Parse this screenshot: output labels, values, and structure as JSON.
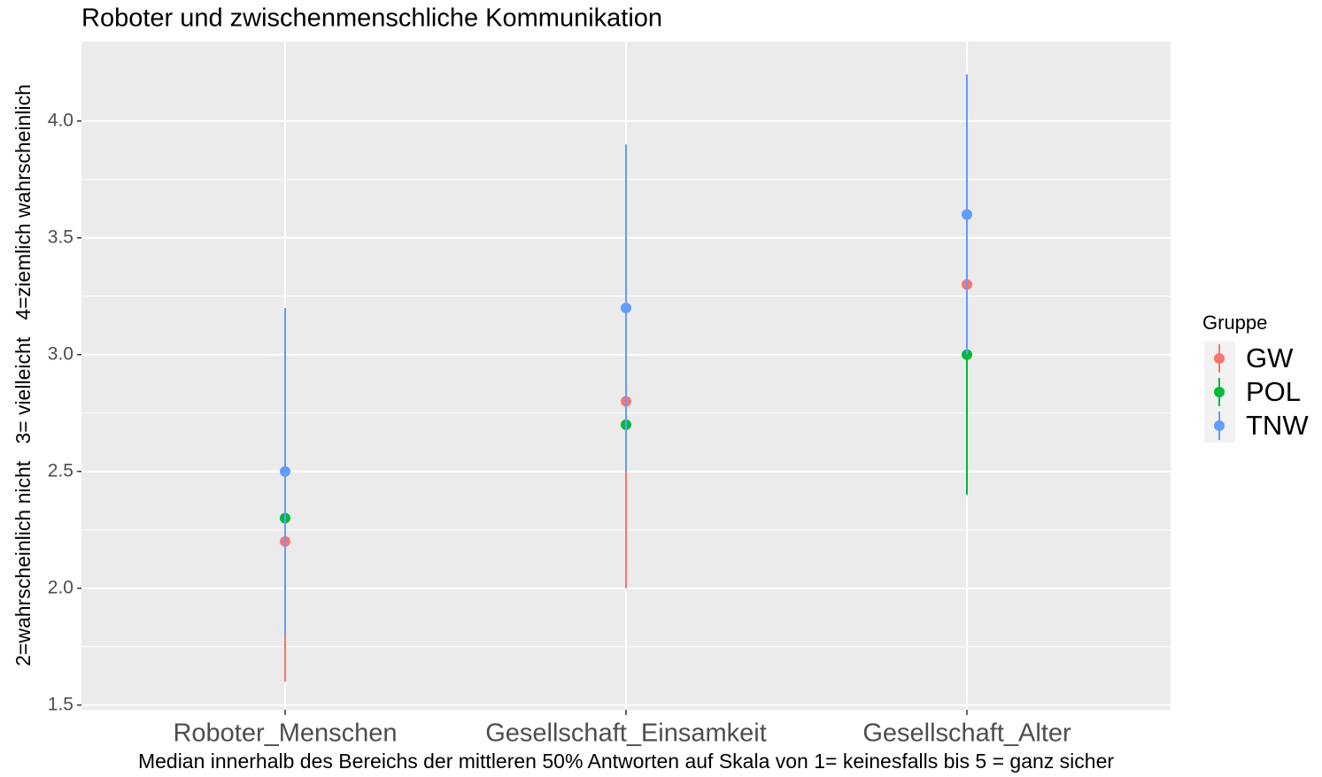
{
  "chart_data": {
    "type": "pointrange",
    "title": "Roboter und zwischenmenschliche Kommunikation",
    "x_label": "Median innerhalb des Bereichs der mittleren 50% Antworten auf Skala von 1= keinesfalls bis 5 = ganz sicher",
    "y_label": "2=wahrscheinlich nicht   3= vielleicht   4=ziemlich wahrscheinlich",
    "categories": [
      "Roboter_Menschen",
      "Gesellschaft_Einsamkeit",
      "Gesellschaft_Alter"
    ],
    "legend_title": "Gruppe",
    "series": [
      {
        "name": "GW",
        "color": "#F8766D",
        "values": [
          2.2,
          2.8,
          3.3
        ],
        "low": [
          1.6,
          2.0,
          2.5
        ],
        "high": [
          2.5,
          3.0,
          3.3
        ]
      },
      {
        "name": "POL",
        "color": "#00BA38",
        "values": [
          2.3,
          2.7,
          3.0
        ],
        "low": [
          2.0,
          2.5,
          2.4
        ],
        "high": [
          2.5,
          3.0,
          3.0
        ]
      },
      {
        "name": "TNW",
        "color": "#619CFF",
        "values": [
          2.5,
          3.2,
          3.6
        ],
        "low": [
          1.8,
          2.5,
          3.0
        ],
        "high": [
          3.2,
          3.9,
          4.2
        ]
      }
    ],
    "ylim": [
      1.48,
      4.34
    ],
    "yticks": [
      {
        "value": 1.5,
        "label": "1.5"
      },
      {
        "value": 2.0,
        "label": "2.0"
      },
      {
        "value": 2.5,
        "label": "2.5"
      },
      {
        "value": 3.0,
        "label": "3.0"
      },
      {
        "value": 3.5,
        "label": "3.5"
      },
      {
        "value": 4.0,
        "label": "4.0"
      }
    ],
    "grid": true,
    "legend_position": "right"
  }
}
